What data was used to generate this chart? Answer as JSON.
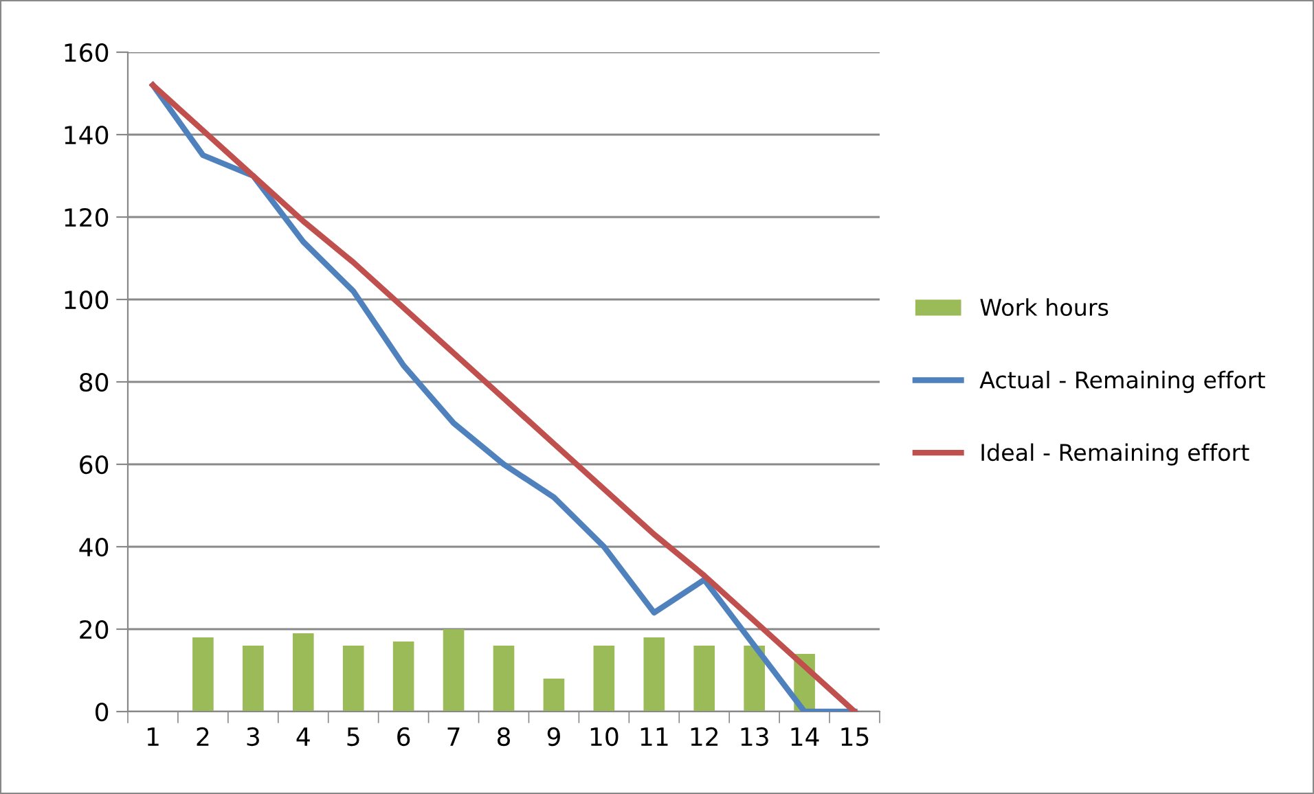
{
  "chart_data": {
    "type": "bar",
    "categories": [
      "1",
      "2",
      "3",
      "4",
      "5",
      "6",
      "7",
      "8",
      "9",
      "10",
      "11",
      "12",
      "13",
      "14",
      "15"
    ],
    "series": [
      {
        "name": "Work hours",
        "color": "#9bbb59",
        "values": [
          null,
          18,
          16,
          19,
          16,
          17,
          20,
          16,
          8,
          16,
          18,
          16,
          16,
          14,
          null
        ]
      },
      {
        "name": "Actual - Remaining effort",
        "type": "line",
        "color": "#4f81bd",
        "values": [
          152,
          135,
          130,
          114,
          102,
          84,
          70,
          60,
          52,
          40,
          24,
          32,
          16,
          0,
          0
        ]
      },
      {
        "name": "Ideal - Remaining effort",
        "type": "line",
        "color": "#c0504d",
        "values": [
          152,
          141,
          130,
          119,
          109,
          98,
          87,
          76,
          65,
          54,
          43,
          33,
          22,
          11,
          0
        ]
      }
    ],
    "ylim": [
      0,
      160
    ],
    "yticks": [
      0,
      20,
      40,
      60,
      80,
      100,
      120,
      140,
      160
    ],
    "grid": "y",
    "legend": "right",
    "marker": "none",
    "line_style": "solid"
  }
}
